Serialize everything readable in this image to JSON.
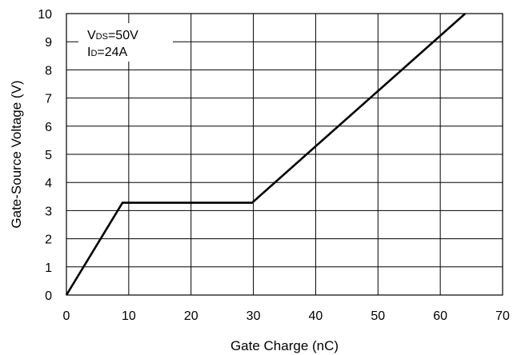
{
  "chart_data": {
    "type": "line",
    "xlabel": "Gate Charge (nC)",
    "ylabel": "Gate-Source Voltage (V)",
    "xlim": [
      0,
      70
    ],
    "ylim": [
      0,
      10
    ],
    "xticks": [
      0,
      10,
      20,
      30,
      40,
      50,
      60,
      70
    ],
    "yticks": [
      0,
      1,
      2,
      3,
      4,
      5,
      6,
      7,
      8,
      9,
      10
    ],
    "grid": true,
    "annotation": {
      "line1": {
        "main": "V",
        "sub": "DS",
        "rest": "=50V"
      },
      "line2": {
        "main": "I",
        "sub": "D",
        "rest": "=24A"
      }
    },
    "series": [
      {
        "x": [
          0,
          9,
          29.8,
          64
        ],
        "y": [
          0,
          3.28,
          3.28,
          10
        ]
      }
    ],
    "colors": {
      "line": "#000000",
      "grid": "#000000"
    }
  }
}
